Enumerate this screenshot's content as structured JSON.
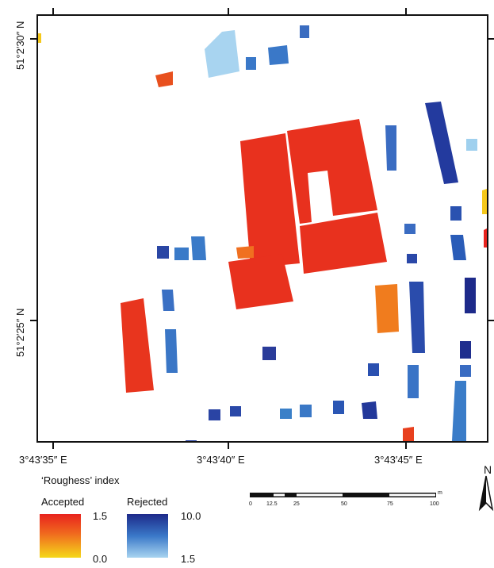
{
  "coords": {
    "x_labels": [
      "3°43′35″ E",
      "3°43′40″ E",
      "3°43′45″ E"
    ],
    "y_labels": [
      "51°2′30″ N",
      "51°2′25″ N"
    ]
  },
  "legend": {
    "title": "‘Roughess’ index",
    "accepted": {
      "label": "Accepted",
      "max": "1.5",
      "min": "0.0",
      "colors": [
        "#e8231e",
        "#f07c1e",
        "#f5d81a"
      ]
    },
    "rejected": {
      "label": "Rejected",
      "max": "10.0",
      "min": "1.5",
      "colors": [
        "#1d2a8a",
        "#3a78c8",
        "#a8d4f0"
      ]
    }
  },
  "scale_bar": {
    "unit": "m",
    "ticks": [
      "0",
      "12.5",
      "25",
      "50",
      "75",
      "100"
    ]
  },
  "north_arrow": {
    "label": "N"
  }
}
